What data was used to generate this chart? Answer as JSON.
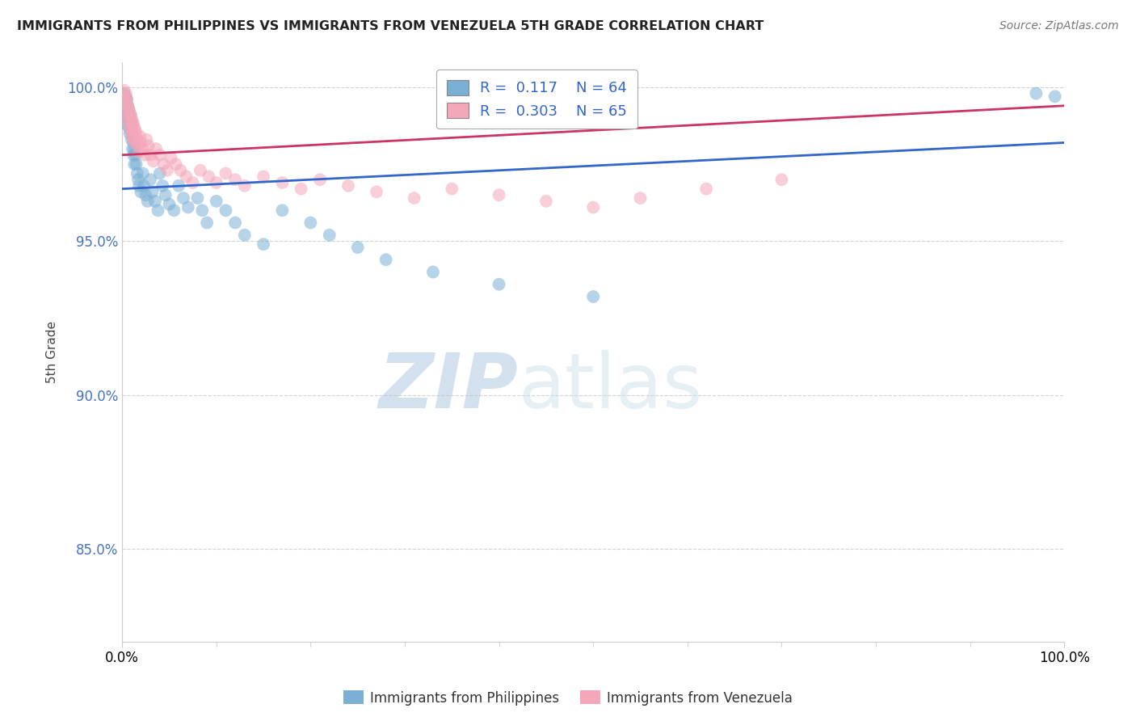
{
  "title": "IMMIGRANTS FROM PHILIPPINES VS IMMIGRANTS FROM VENEZUELA 5TH GRADE CORRELATION CHART",
  "source": "Source: ZipAtlas.com",
  "ylabel": "5th Grade",
  "xlim": [
    0.0,
    1.0
  ],
  "ylim": [
    0.82,
    1.008
  ],
  "yticks": [
    0.85,
    0.9,
    0.95,
    1.0
  ],
  "ytick_labels": [
    "85.0%",
    "90.0%",
    "95.0%",
    "100.0%"
  ],
  "legend_r_philippines": "0.117",
  "legend_n_philippines": "64",
  "legend_r_venezuela": "0.303",
  "legend_n_venezuela": "65",
  "color_philippines": "#7bafd4",
  "color_venezuela": "#f4a7b9",
  "line_color_philippines": "#3366cc",
  "line_color_venezuela": "#cc3366",
  "watermark_zip": "ZIP",
  "watermark_atlas": "atlas",
  "philippines_x": [
    0.002,
    0.003,
    0.003,
    0.004,
    0.004,
    0.005,
    0.005,
    0.005,
    0.006,
    0.006,
    0.007,
    0.007,
    0.008,
    0.008,
    0.009,
    0.009,
    0.01,
    0.01,
    0.011,
    0.011,
    0.012,
    0.012,
    0.013,
    0.013,
    0.014,
    0.015,
    0.016,
    0.017,
    0.018,
    0.02,
    0.022,
    0.023,
    0.025,
    0.027,
    0.03,
    0.032,
    0.035,
    0.038,
    0.04,
    0.043,
    0.046,
    0.05,
    0.055,
    0.06,
    0.065,
    0.07,
    0.08,
    0.085,
    0.09,
    0.1,
    0.11,
    0.12,
    0.13,
    0.15,
    0.17,
    0.2,
    0.22,
    0.25,
    0.28,
    0.33,
    0.4,
    0.5,
    0.97,
    0.99
  ],
  "philippines_y": [
    0.998,
    0.995,
    0.993,
    0.991,
    0.997,
    0.992,
    0.988,
    0.996,
    0.99,
    0.994,
    0.987,
    0.993,
    0.989,
    0.985,
    0.991,
    0.986,
    0.988,
    0.983,
    0.985,
    0.98,
    0.982,
    0.978,
    0.98,
    0.975,
    0.978,
    0.975,
    0.972,
    0.97,
    0.968,
    0.966,
    0.972,
    0.968,
    0.965,
    0.963,
    0.97,
    0.966,
    0.963,
    0.96,
    0.972,
    0.968,
    0.965,
    0.962,
    0.96,
    0.968,
    0.964,
    0.961,
    0.964,
    0.96,
    0.956,
    0.963,
    0.96,
    0.956,
    0.952,
    0.949,
    0.96,
    0.956,
    0.952,
    0.948,
    0.944,
    0.94,
    0.936,
    0.932,
    0.998,
    0.997
  ],
  "venezuela_x": [
    0.002,
    0.003,
    0.003,
    0.004,
    0.004,
    0.005,
    0.005,
    0.006,
    0.006,
    0.007,
    0.007,
    0.008,
    0.008,
    0.009,
    0.009,
    0.01,
    0.01,
    0.011,
    0.011,
    0.012,
    0.012,
    0.013,
    0.013,
    0.014,
    0.015,
    0.016,
    0.017,
    0.018,
    0.019,
    0.02,
    0.022,
    0.024,
    0.026,
    0.028,
    0.03,
    0.033,
    0.036,
    0.04,
    0.044,
    0.048,
    0.052,
    0.057,
    0.062,
    0.068,
    0.075,
    0.083,
    0.092,
    0.1,
    0.11,
    0.12,
    0.13,
    0.15,
    0.17,
    0.19,
    0.21,
    0.24,
    0.27,
    0.31,
    0.35,
    0.4,
    0.45,
    0.5,
    0.55,
    0.62,
    0.7
  ],
  "venezuela_y": [
    0.999,
    0.997,
    0.996,
    0.998,
    0.994,
    0.996,
    0.992,
    0.994,
    0.99,
    0.993,
    0.989,
    0.992,
    0.987,
    0.991,
    0.986,
    0.99,
    0.985,
    0.989,
    0.984,
    0.988,
    0.983,
    0.987,
    0.982,
    0.986,
    0.985,
    0.983,
    0.981,
    0.979,
    0.984,
    0.982,
    0.98,
    0.978,
    0.983,
    0.981,
    0.978,
    0.976,
    0.98,
    0.978,
    0.975,
    0.973,
    0.977,
    0.975,
    0.973,
    0.971,
    0.969,
    0.973,
    0.971,
    0.969,
    0.972,
    0.97,
    0.968,
    0.971,
    0.969,
    0.967,
    0.97,
    0.968,
    0.966,
    0.964,
    0.967,
    0.965,
    0.963,
    0.961,
    0.964,
    0.967,
    0.97
  ]
}
